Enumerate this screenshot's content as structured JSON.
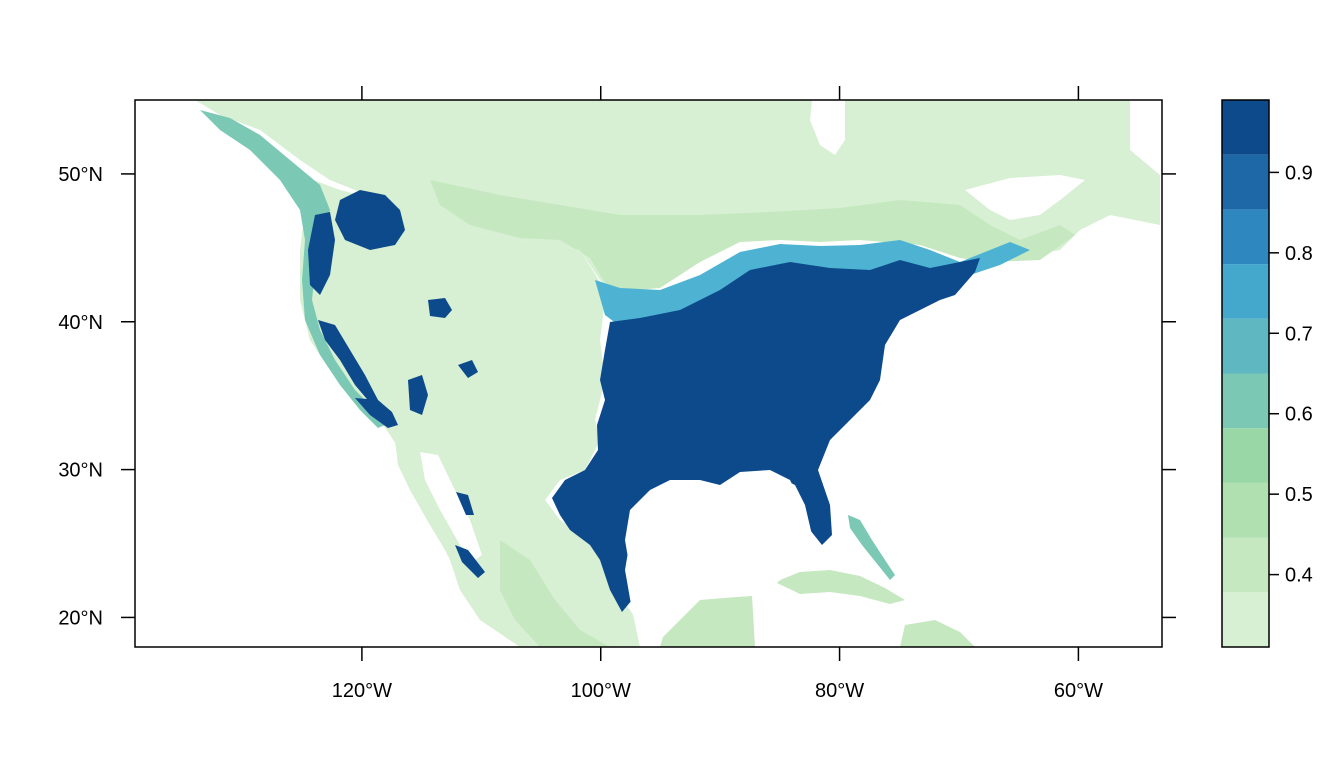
{
  "map": {
    "type": "raster-map",
    "projection": "longitude-latitude",
    "extent": {
      "lon": [
        -139,
        -53
      ],
      "lat": [
        18,
        55
      ]
    },
    "x_ticks": [
      {
        "lon": -120,
        "label": "120°W"
      },
      {
        "lon": -100,
        "label": "100°W"
      },
      {
        "lon": -80,
        "label": "80°W"
      },
      {
        "lon": -60,
        "label": "60°W"
      }
    ],
    "y_ticks": [
      {
        "lat": 50,
        "label": "50°N"
      },
      {
        "lat": 40,
        "label": "40°N"
      },
      {
        "lat": 30,
        "label": "30°N"
      },
      {
        "lat": 20,
        "label": "20°N"
      }
    ],
    "colors": {
      "frame": "#000000",
      "water": "#ffffff",
      "low": "#d7efd2",
      "mid_low": "#c5e8c0",
      "mid": "#a8ddb5",
      "teal": "#7bc8b4",
      "cyan": "#4eb3d3",
      "blue": "#2b8cbe",
      "high": "#0d4a8c"
    }
  },
  "legend": {
    "range": [
      0.31,
      0.99
    ],
    "breaks": [
      0.31,
      0.378,
      0.446,
      0.514,
      0.582,
      0.65,
      0.718,
      0.786,
      0.854,
      0.922,
      0.99
    ],
    "colors": [
      "#d7efd2",
      "#c5e8c0",
      "#b0e0b0",
      "#99d7a6",
      "#7bc8b4",
      "#5fb8c1",
      "#44a8cc",
      "#2e88bf",
      "#1f68a8",
      "#0d4a8c"
    ],
    "tick_labels": [
      {
        "value": 0.4,
        "label": "0.4"
      },
      {
        "value": 0.5,
        "label": "0.5"
      },
      {
        "value": 0.6,
        "label": "0.6"
      },
      {
        "value": 0.7,
        "label": "0.7"
      },
      {
        "value": 0.8,
        "label": "0.8"
      },
      {
        "value": 0.9,
        "label": "0.9"
      }
    ]
  }
}
